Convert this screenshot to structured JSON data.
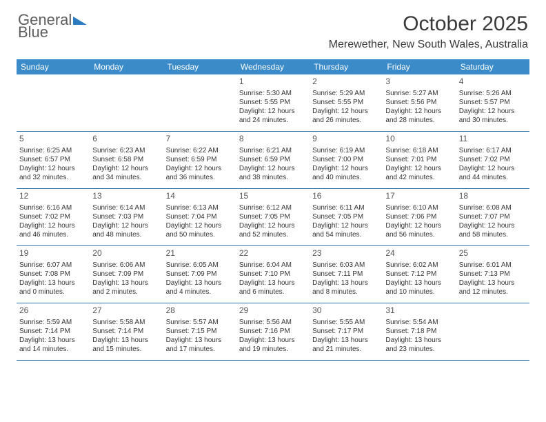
{
  "logo": {
    "text1": "General",
    "text2": "Blue"
  },
  "title": "October 2025",
  "location": "Merewether, New South Wales, Australia",
  "colors": {
    "header_bg": "#3b8bc9",
    "header_text": "#ffffff",
    "row_border": "#2f6ea8",
    "body_text": "#333333",
    "logo_gray": "#5e5e5e",
    "logo_blue": "#2d7bbf"
  },
  "dow": [
    "Sunday",
    "Monday",
    "Tuesday",
    "Wednesday",
    "Thursday",
    "Friday",
    "Saturday"
  ],
  "weeks": [
    [
      {
        "n": "",
        "sr": "",
        "ss": "",
        "dl": ""
      },
      {
        "n": "",
        "sr": "",
        "ss": "",
        "dl": ""
      },
      {
        "n": "",
        "sr": "",
        "ss": "",
        "dl": ""
      },
      {
        "n": "1",
        "sr": "Sunrise: 5:30 AM",
        "ss": "Sunset: 5:55 PM",
        "dl": "Daylight: 12 hours and 24 minutes."
      },
      {
        "n": "2",
        "sr": "Sunrise: 5:29 AM",
        "ss": "Sunset: 5:55 PM",
        "dl": "Daylight: 12 hours and 26 minutes."
      },
      {
        "n": "3",
        "sr": "Sunrise: 5:27 AM",
        "ss": "Sunset: 5:56 PM",
        "dl": "Daylight: 12 hours and 28 minutes."
      },
      {
        "n": "4",
        "sr": "Sunrise: 5:26 AM",
        "ss": "Sunset: 5:57 PM",
        "dl": "Daylight: 12 hours and 30 minutes."
      }
    ],
    [
      {
        "n": "5",
        "sr": "Sunrise: 6:25 AM",
        "ss": "Sunset: 6:57 PM",
        "dl": "Daylight: 12 hours and 32 minutes."
      },
      {
        "n": "6",
        "sr": "Sunrise: 6:23 AM",
        "ss": "Sunset: 6:58 PM",
        "dl": "Daylight: 12 hours and 34 minutes."
      },
      {
        "n": "7",
        "sr": "Sunrise: 6:22 AM",
        "ss": "Sunset: 6:59 PM",
        "dl": "Daylight: 12 hours and 36 minutes."
      },
      {
        "n": "8",
        "sr": "Sunrise: 6:21 AM",
        "ss": "Sunset: 6:59 PM",
        "dl": "Daylight: 12 hours and 38 minutes."
      },
      {
        "n": "9",
        "sr": "Sunrise: 6:19 AM",
        "ss": "Sunset: 7:00 PM",
        "dl": "Daylight: 12 hours and 40 minutes."
      },
      {
        "n": "10",
        "sr": "Sunrise: 6:18 AM",
        "ss": "Sunset: 7:01 PM",
        "dl": "Daylight: 12 hours and 42 minutes."
      },
      {
        "n": "11",
        "sr": "Sunrise: 6:17 AM",
        "ss": "Sunset: 7:02 PM",
        "dl": "Daylight: 12 hours and 44 minutes."
      }
    ],
    [
      {
        "n": "12",
        "sr": "Sunrise: 6:16 AM",
        "ss": "Sunset: 7:02 PM",
        "dl": "Daylight: 12 hours and 46 minutes."
      },
      {
        "n": "13",
        "sr": "Sunrise: 6:14 AM",
        "ss": "Sunset: 7:03 PM",
        "dl": "Daylight: 12 hours and 48 minutes."
      },
      {
        "n": "14",
        "sr": "Sunrise: 6:13 AM",
        "ss": "Sunset: 7:04 PM",
        "dl": "Daylight: 12 hours and 50 minutes."
      },
      {
        "n": "15",
        "sr": "Sunrise: 6:12 AM",
        "ss": "Sunset: 7:05 PM",
        "dl": "Daylight: 12 hours and 52 minutes."
      },
      {
        "n": "16",
        "sr": "Sunrise: 6:11 AM",
        "ss": "Sunset: 7:05 PM",
        "dl": "Daylight: 12 hours and 54 minutes."
      },
      {
        "n": "17",
        "sr": "Sunrise: 6:10 AM",
        "ss": "Sunset: 7:06 PM",
        "dl": "Daylight: 12 hours and 56 minutes."
      },
      {
        "n": "18",
        "sr": "Sunrise: 6:08 AM",
        "ss": "Sunset: 7:07 PM",
        "dl": "Daylight: 12 hours and 58 minutes."
      }
    ],
    [
      {
        "n": "19",
        "sr": "Sunrise: 6:07 AM",
        "ss": "Sunset: 7:08 PM",
        "dl": "Daylight: 13 hours and 0 minutes."
      },
      {
        "n": "20",
        "sr": "Sunrise: 6:06 AM",
        "ss": "Sunset: 7:09 PM",
        "dl": "Daylight: 13 hours and 2 minutes."
      },
      {
        "n": "21",
        "sr": "Sunrise: 6:05 AM",
        "ss": "Sunset: 7:09 PM",
        "dl": "Daylight: 13 hours and 4 minutes."
      },
      {
        "n": "22",
        "sr": "Sunrise: 6:04 AM",
        "ss": "Sunset: 7:10 PM",
        "dl": "Daylight: 13 hours and 6 minutes."
      },
      {
        "n": "23",
        "sr": "Sunrise: 6:03 AM",
        "ss": "Sunset: 7:11 PM",
        "dl": "Daylight: 13 hours and 8 minutes."
      },
      {
        "n": "24",
        "sr": "Sunrise: 6:02 AM",
        "ss": "Sunset: 7:12 PM",
        "dl": "Daylight: 13 hours and 10 minutes."
      },
      {
        "n": "25",
        "sr": "Sunrise: 6:01 AM",
        "ss": "Sunset: 7:13 PM",
        "dl": "Daylight: 13 hours and 12 minutes."
      }
    ],
    [
      {
        "n": "26",
        "sr": "Sunrise: 5:59 AM",
        "ss": "Sunset: 7:14 PM",
        "dl": "Daylight: 13 hours and 14 minutes."
      },
      {
        "n": "27",
        "sr": "Sunrise: 5:58 AM",
        "ss": "Sunset: 7:14 PM",
        "dl": "Daylight: 13 hours and 15 minutes."
      },
      {
        "n": "28",
        "sr": "Sunrise: 5:57 AM",
        "ss": "Sunset: 7:15 PM",
        "dl": "Daylight: 13 hours and 17 minutes."
      },
      {
        "n": "29",
        "sr": "Sunrise: 5:56 AM",
        "ss": "Sunset: 7:16 PM",
        "dl": "Daylight: 13 hours and 19 minutes."
      },
      {
        "n": "30",
        "sr": "Sunrise: 5:55 AM",
        "ss": "Sunset: 7:17 PM",
        "dl": "Daylight: 13 hours and 21 minutes."
      },
      {
        "n": "31",
        "sr": "Sunrise: 5:54 AM",
        "ss": "Sunset: 7:18 PM",
        "dl": "Daylight: 13 hours and 23 minutes."
      },
      {
        "n": "",
        "sr": "",
        "ss": "",
        "dl": ""
      }
    ]
  ]
}
